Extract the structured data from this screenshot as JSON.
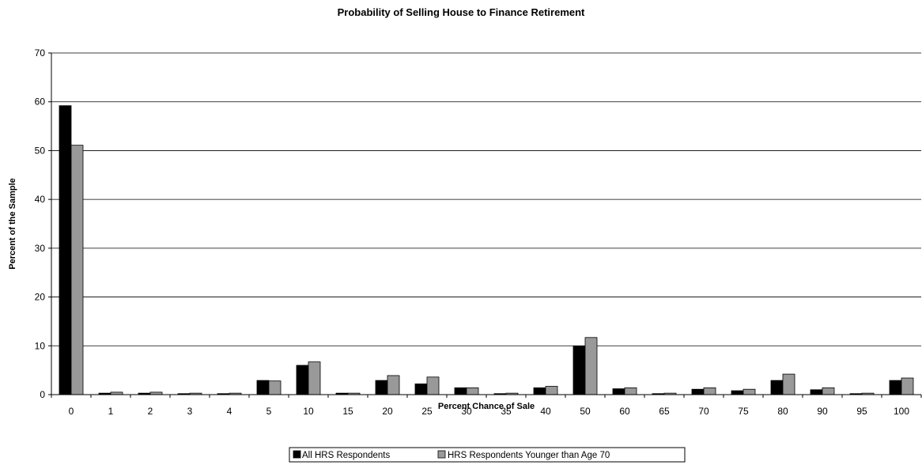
{
  "chart_data": {
    "type": "bar",
    "title": "Probability of Selling House to Finance Retirement",
    "xlabel": "Percent Chance of Sale",
    "ylabel": "Percent of the Sample",
    "ylim": [
      0,
      70
    ],
    "yticks": [
      "0",
      "10",
      "20",
      "30",
      "40",
      "50",
      "60",
      "70"
    ],
    "grid": true,
    "legend_position": "bottom",
    "categories": [
      "0",
      "1",
      "2",
      "3",
      "4",
      "5",
      "10",
      "15",
      "20",
      "25",
      "30",
      "35",
      "40",
      "50",
      "60",
      "65",
      "70",
      "75",
      "80",
      "90",
      "95",
      "100"
    ],
    "series": [
      {
        "name": "All HRS Respondents",
        "color": "#000000",
        "values": [
          59.2,
          0.3,
          0.3,
          0.2,
          0.2,
          2.9,
          6.0,
          0.3,
          2.9,
          2.2,
          1.4,
          0.2,
          1.4,
          9.9,
          1.2,
          0.2,
          1.1,
          0.8,
          2.9,
          1.0,
          0.2,
          2.9
        ]
      },
      {
        "name": "HRS Respondents Younger than Age 70",
        "color": "#999999",
        "values": [
          51.1,
          0.5,
          0.5,
          0.3,
          0.3,
          2.8,
          6.7,
          0.3,
          3.9,
          3.6,
          1.4,
          0.3,
          1.7,
          11.7,
          1.4,
          0.3,
          1.4,
          1.1,
          4.2,
          1.4,
          0.3,
          3.4
        ]
      }
    ]
  }
}
